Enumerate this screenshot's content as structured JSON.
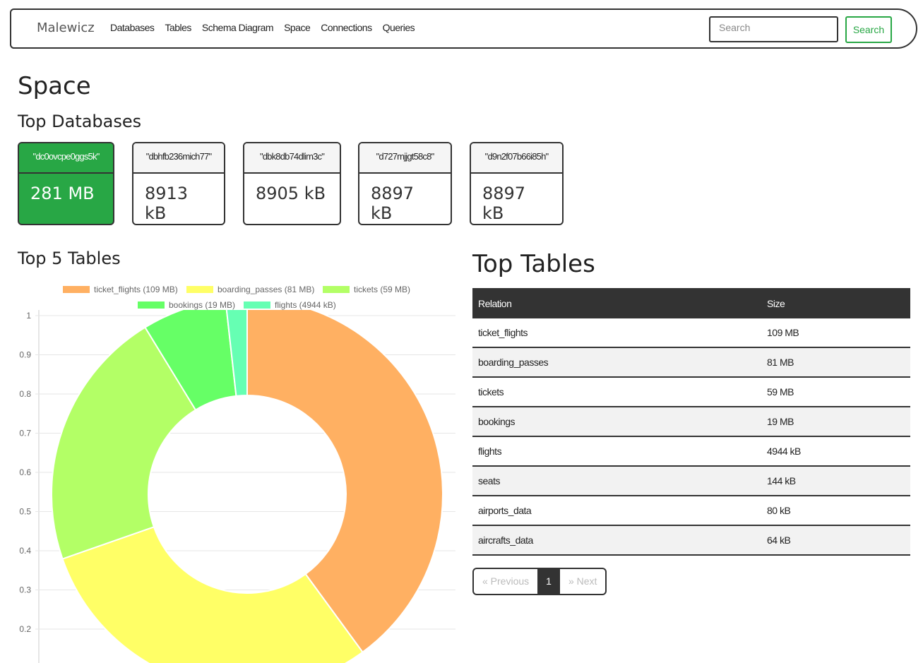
{
  "nav": {
    "brand": "Malewicz",
    "links": [
      "Databases",
      "Tables",
      "Schema Diagram",
      "Space",
      "Connections",
      "Queries"
    ],
    "search_placeholder": "Search",
    "search_button": "Search"
  },
  "page_title": "Space",
  "top_databases": {
    "title": "Top Databases",
    "cards": [
      {
        "name": "\"dc0ovcpe0ggs5k\"",
        "size": "281 MB",
        "active": true
      },
      {
        "name": "\"dbhfb236mich77\"",
        "size": "8913 kB"
      },
      {
        "name": "\"dbk8db74dlim3c\"",
        "size": "8905 kB"
      },
      {
        "name": "\"d727mjjgt58c8\"",
        "size": "8897 kB"
      },
      {
        "name": "\"d9n2f07b66i85h\"",
        "size": "8897 kB"
      }
    ]
  },
  "chart_title": "Top 5 Tables",
  "chart_data": {
    "type": "pie",
    "variant": "doughnut",
    "legend": [
      "ticket_flights (109 MB)",
      "boarding_passes (81 MB)",
      "tickets (59 MB)",
      "bookings (19 MB)",
      "flights (4944 kB)"
    ],
    "labels": [
      "ticket_flights",
      "boarding_passes",
      "tickets",
      "bookings",
      "flights"
    ],
    "values_mb": [
      109,
      81,
      59,
      19,
      4.83
    ],
    "colors": [
      "#ffb062",
      "#ffff66",
      "#b3ff66",
      "#66ff66",
      "#66ffb3"
    ],
    "yticks": [
      "1",
      "0.9",
      "0.8",
      "0.7",
      "0.6",
      "0.5",
      "0.4",
      "0.3",
      "0.2"
    ],
    "legend_position": "top",
    "grid": true
  },
  "top_tables": {
    "title": "Top Tables",
    "headers": [
      "Relation",
      "Size"
    ],
    "rows": [
      [
        "ticket_flights",
        "109 MB"
      ],
      [
        "boarding_passes",
        "81 MB"
      ],
      [
        "tickets",
        "59 MB"
      ],
      [
        "bookings",
        "19 MB"
      ],
      [
        "flights",
        "4944 kB"
      ],
      [
        "seats",
        "144 kB"
      ],
      [
        "airports_data",
        "80 kB"
      ],
      [
        "aircrafts_data",
        "64 kB"
      ]
    ]
  },
  "pager": {
    "prev": "« Previous",
    "current": "1",
    "next": "» Next"
  }
}
